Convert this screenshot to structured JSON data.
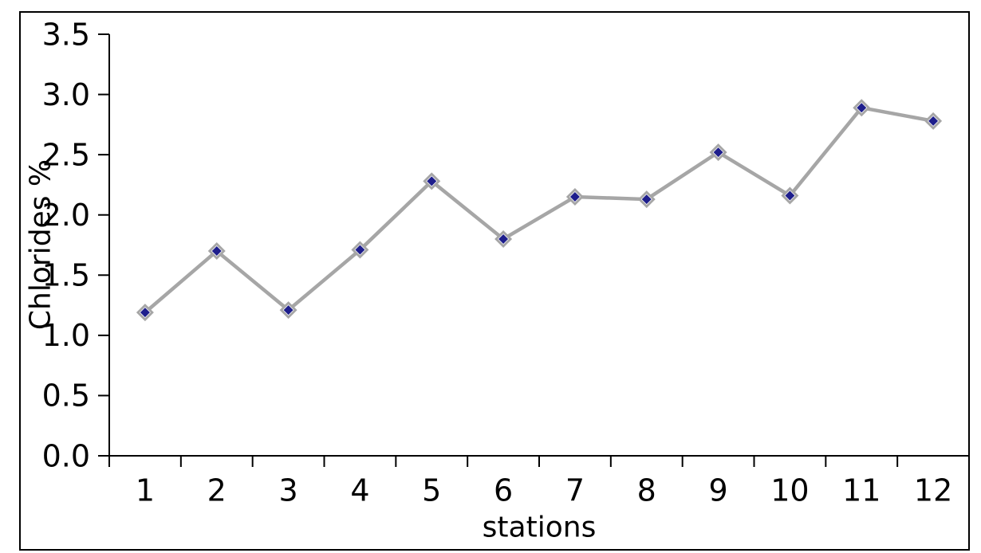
{
  "chart_data": {
    "type": "line",
    "title": "",
    "xlabel": "stations",
    "ylabel": "Chlorides %",
    "categories": [
      "1",
      "2",
      "3",
      "4",
      "5",
      "6",
      "7",
      "8",
      "9",
      "10",
      "11",
      "12"
    ],
    "series": [
      {
        "name": "Chlorides %",
        "values": [
          1.19,
          1.7,
          1.21,
          1.71,
          2.28,
          1.8,
          2.15,
          2.13,
          2.52,
          2.16,
          2.89,
          2.78
        ]
      }
    ],
    "ylim": [
      0.0,
      3.5
    ],
    "ytick_step": 0.5,
    "ytick_labels": [
      "0.0",
      "0.5",
      "1.0",
      "1.5",
      "2.0",
      "2.5",
      "3.0",
      "3.5"
    ],
    "grid": false,
    "legend": false,
    "marker": "diamond",
    "colors": {
      "line": "#a6a6a6",
      "marker_fill": "#1e1e8c",
      "marker_border": "#a6a6a6",
      "marker_gap": "#ffffff",
      "axis": "#000000",
      "frame": "#000000",
      "background": "#ffffff",
      "text": "#000000"
    }
  }
}
